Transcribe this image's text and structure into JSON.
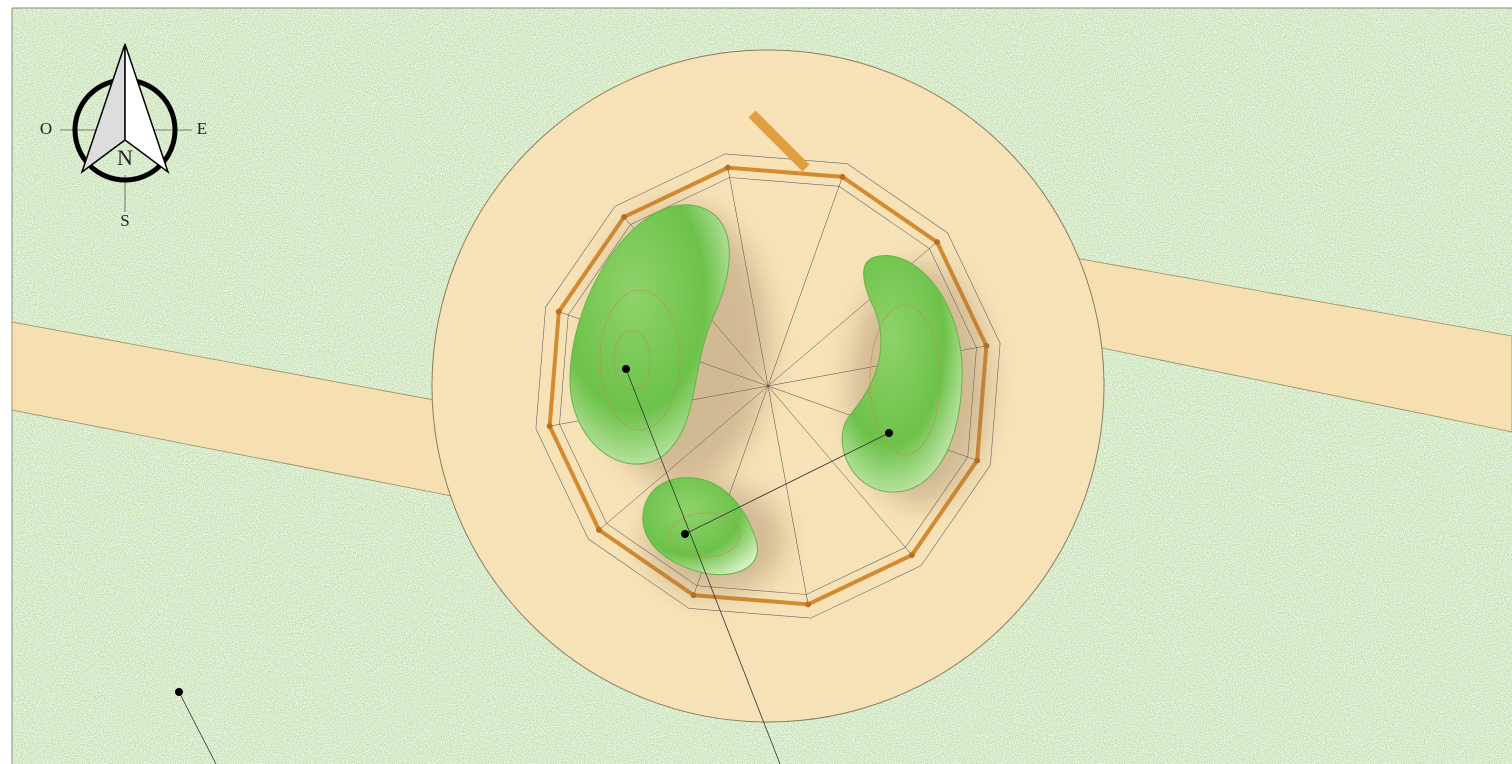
{
  "compass": {
    "north": "N",
    "south": "S",
    "east": "E",
    "west": "O"
  }
}
